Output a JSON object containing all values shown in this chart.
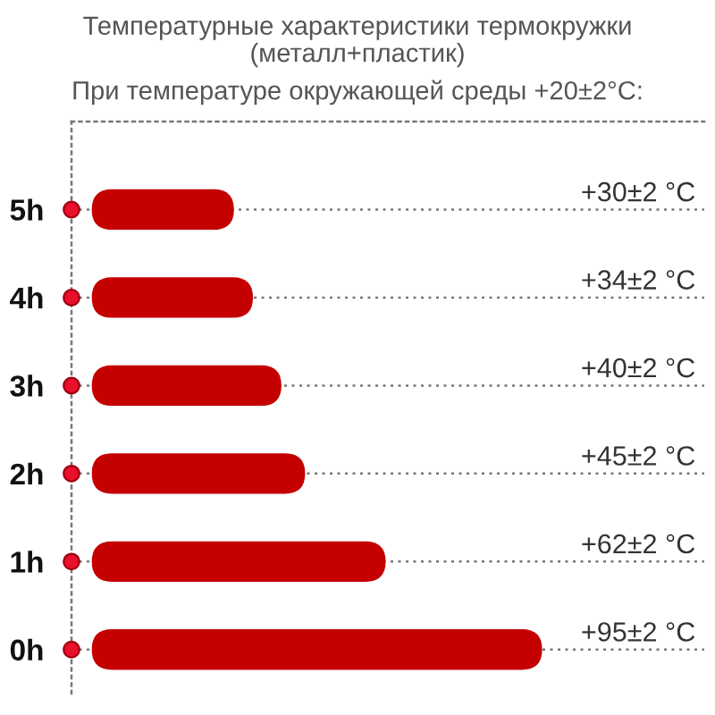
{
  "chart_data": {
    "type": "bar",
    "orientation": "horizontal",
    "title": "Температурные характеристики термокружки\n(металл+пластик)",
    "subtitle": "При температуре окружающей среды +20±2°C:",
    "categories": [
      "5h",
      "4h",
      "3h",
      "2h",
      "1h",
      "0h"
    ],
    "values": [
      30,
      34,
      40,
      45,
      62,
      95
    ],
    "value_labels": [
      "+30±2 °C",
      "+34±2 °C",
      "+40±2 °C",
      "+45±2 °C",
      "+62±2 °C",
      "+95±2 °C"
    ],
    "color": "#c40000",
    "grid": "y",
    "tick_labels": "y"
  }
}
